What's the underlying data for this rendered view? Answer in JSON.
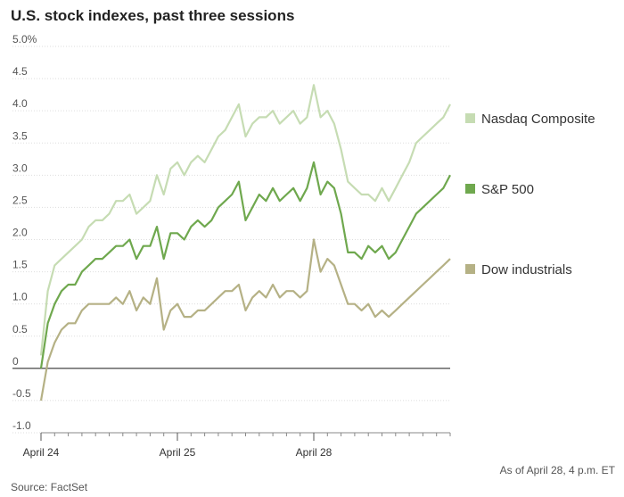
{
  "chart_data": {
    "type": "line",
    "title": "U.S. stock indexes, past three sessions",
    "xlabel": "",
    "ylabel": "",
    "ylim": [
      -1.0,
      5.0
    ],
    "y_ticks": [
      5.0,
      4.5,
      4.0,
      3.5,
      3.0,
      2.5,
      2.0,
      1.5,
      1.0,
      0.5,
      0,
      -0.5,
      -1.0
    ],
    "y_tick_labels": [
      "5.0%",
      "4.5",
      "4.0",
      "3.5",
      "3.0",
      "2.5",
      "2.0",
      "1.5",
      "1.0",
      "0.5",
      "0",
      "-0.5",
      "-1.0"
    ],
    "x_session_labels": [
      "April 24",
      "April 25",
      "April 28"
    ],
    "x_range": [
      0,
      3
    ],
    "grid": true,
    "legend_placement": "right",
    "note": "As of April 28, 4 p.m. ET",
    "source": "Source: FactSet",
    "series": [
      {
        "name": "Nasdaq Composite",
        "color": "#c6dcb3",
        "x": [
          0,
          0.05,
          0.1,
          0.15,
          0.2,
          0.25,
          0.3,
          0.35,
          0.4,
          0.45,
          0.5,
          0.55,
          0.6,
          0.65,
          0.7,
          0.75,
          0.8,
          0.85,
          0.9,
          0.95,
          1.0,
          1.05,
          1.1,
          1.15,
          1.2,
          1.25,
          1.3,
          1.35,
          1.4,
          1.45,
          1.5,
          1.55,
          1.6,
          1.65,
          1.7,
          1.75,
          1.8,
          1.85,
          1.9,
          1.95,
          2.0,
          2.05,
          2.1,
          2.15,
          2.2,
          2.25,
          2.3,
          2.35,
          2.4,
          2.45,
          2.5,
          2.55,
          2.6,
          2.65,
          2.7,
          2.75,
          2.8,
          2.85,
          2.9,
          2.95,
          3.0
        ],
        "values": [
          0.2,
          1.2,
          1.6,
          1.7,
          1.8,
          1.9,
          2.0,
          2.2,
          2.3,
          2.3,
          2.4,
          2.6,
          2.6,
          2.7,
          2.4,
          2.5,
          2.6,
          3.0,
          2.7,
          3.1,
          3.2,
          3.0,
          3.2,
          3.3,
          3.2,
          3.4,
          3.6,
          3.7,
          3.9,
          4.1,
          3.6,
          3.8,
          3.9,
          3.9,
          4.0,
          3.8,
          3.9,
          4.0,
          3.8,
          3.9,
          4.4,
          3.9,
          4.0,
          3.8,
          3.4,
          2.9,
          2.8,
          2.7,
          2.7,
          2.6,
          2.8,
          2.6,
          2.8,
          3.0,
          3.2,
          3.5,
          3.6,
          3.7,
          3.8,
          3.9,
          4.1
        ]
      },
      {
        "name": "S&P 500",
        "color": "#6fa84e",
        "x": [
          0,
          0.05,
          0.1,
          0.15,
          0.2,
          0.25,
          0.3,
          0.35,
          0.4,
          0.45,
          0.5,
          0.55,
          0.6,
          0.65,
          0.7,
          0.75,
          0.8,
          0.85,
          0.9,
          0.95,
          1.0,
          1.05,
          1.1,
          1.15,
          1.2,
          1.25,
          1.3,
          1.35,
          1.4,
          1.45,
          1.5,
          1.55,
          1.6,
          1.65,
          1.7,
          1.75,
          1.8,
          1.85,
          1.9,
          1.95,
          2.0,
          2.05,
          2.1,
          2.15,
          2.2,
          2.25,
          2.3,
          2.35,
          2.4,
          2.45,
          2.5,
          2.55,
          2.6,
          2.65,
          2.7,
          2.75,
          2.8,
          2.85,
          2.9,
          2.95,
          3.0
        ],
        "values": [
          0.0,
          0.7,
          1.0,
          1.2,
          1.3,
          1.3,
          1.5,
          1.6,
          1.7,
          1.7,
          1.8,
          1.9,
          1.9,
          2.0,
          1.7,
          1.9,
          1.9,
          2.2,
          1.7,
          2.1,
          2.1,
          2.0,
          2.2,
          2.3,
          2.2,
          2.3,
          2.5,
          2.6,
          2.7,
          2.9,
          2.3,
          2.5,
          2.7,
          2.6,
          2.8,
          2.6,
          2.7,
          2.8,
          2.6,
          2.8,
          3.2,
          2.7,
          2.9,
          2.8,
          2.4,
          1.8,
          1.8,
          1.7,
          1.9,
          1.8,
          1.9,
          1.7,
          1.8,
          2.0,
          2.2,
          2.4,
          2.5,
          2.6,
          2.7,
          2.8,
          3.0
        ]
      },
      {
        "name": "Dow industrials",
        "color": "#b5b185",
        "x": [
          0,
          0.05,
          0.1,
          0.15,
          0.2,
          0.25,
          0.3,
          0.35,
          0.4,
          0.45,
          0.5,
          0.55,
          0.6,
          0.65,
          0.7,
          0.75,
          0.8,
          0.85,
          0.9,
          0.95,
          1.0,
          1.05,
          1.1,
          1.15,
          1.2,
          1.25,
          1.3,
          1.35,
          1.4,
          1.45,
          1.5,
          1.55,
          1.6,
          1.65,
          1.7,
          1.75,
          1.8,
          1.85,
          1.9,
          1.95,
          2.0,
          2.05,
          2.1,
          2.15,
          2.2,
          2.25,
          2.3,
          2.35,
          2.4,
          2.45,
          2.5,
          2.55,
          2.6,
          2.65,
          2.7,
          2.75,
          2.8,
          2.85,
          2.9,
          2.95,
          3.0
        ],
        "values": [
          -0.5,
          0.1,
          0.4,
          0.6,
          0.7,
          0.7,
          0.9,
          1.0,
          1.0,
          1.0,
          1.0,
          1.1,
          1.0,
          1.2,
          0.9,
          1.1,
          1.0,
          1.4,
          0.6,
          0.9,
          1.0,
          0.8,
          0.8,
          0.9,
          0.9,
          1.0,
          1.1,
          1.2,
          1.2,
          1.3,
          0.9,
          1.1,
          1.2,
          1.1,
          1.3,
          1.1,
          1.2,
          1.2,
          1.1,
          1.2,
          2.0,
          1.5,
          1.7,
          1.6,
          1.3,
          1.0,
          1.0,
          0.9,
          1.0,
          0.8,
          0.9,
          0.8,
          0.9,
          1.0,
          1.1,
          1.2,
          1.3,
          1.4,
          1.5,
          1.6,
          1.7
        ]
      }
    ]
  }
}
